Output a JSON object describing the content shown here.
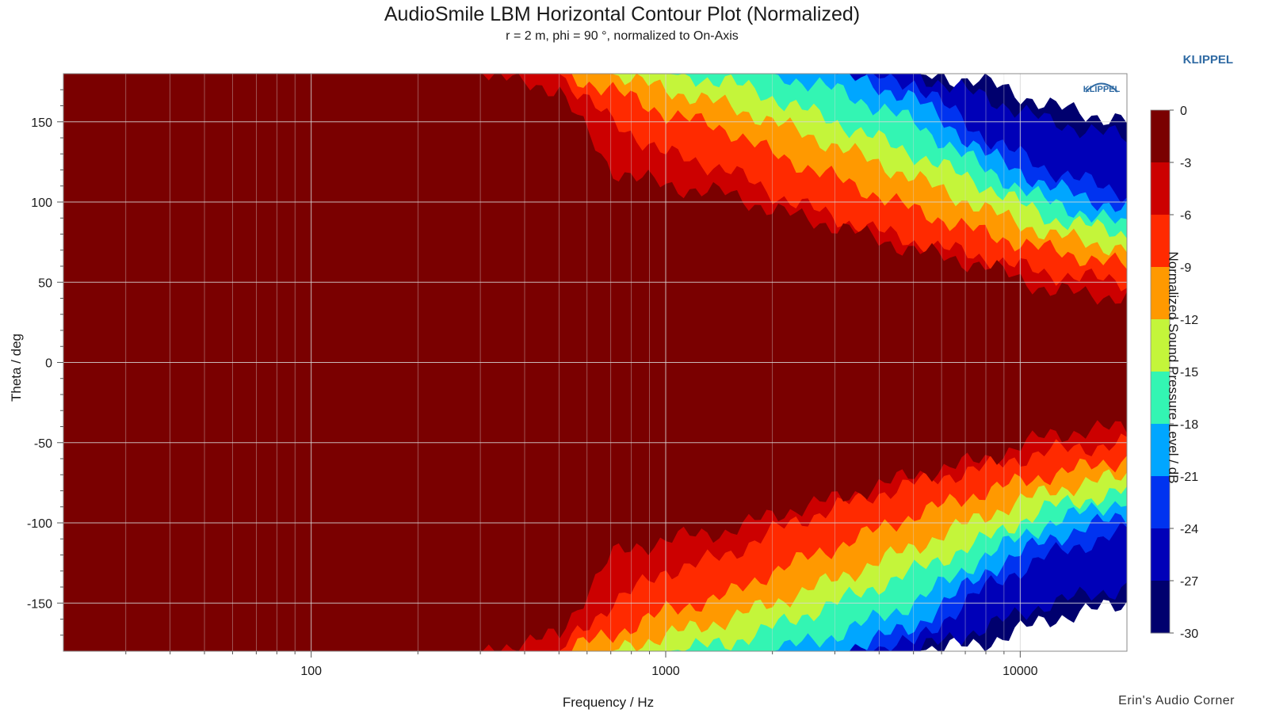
{
  "header": {
    "title": "AudioSmile LBM Horizontal Contour Plot (Normalized)",
    "subtitle": "r = 2 m, phi = 90 °, normalized to On-Axis",
    "brand": "KLIPPEL",
    "logo_text": "KLIPPEL",
    "credit": "Erin's Audio Corner"
  },
  "chart_data": {
    "type": "heatmap",
    "title": "AudioSmile LBM Horizontal Contour Plot (Normalized)",
    "subtitle": "r = 2 m, phi = 90 °, normalized to On-Axis",
    "xlabel": "Frequency / Hz",
    "ylabel": "Theta / deg",
    "colorbar_label": "Normalized Sound Pressure Level / dB",
    "x_scale": "log",
    "xlim": [
      20,
      20000
    ],
    "ylim": [
      -180,
      180
    ],
    "x_ticks": [
      100,
      1000,
      10000
    ],
    "x_tick_labels": [
      "100",
      "1000",
      "10000"
    ],
    "y_ticks": [
      150,
      100,
      50,
      0,
      -50,
      -100,
      -150
    ],
    "y_tick_labels": [
      "150",
      "100",
      "50",
      "0",
      "-50",
      "-100",
      "-150"
    ],
    "grid": true,
    "colorbar": {
      "levels": [
        0,
        -3,
        -6,
        -9,
        -12,
        -15,
        -18,
        -21,
        -24,
        -27,
        -30
      ],
      "level_labels": [
        "0",
        "-3",
        "-6",
        "-9",
        "-12",
        "-15",
        "-18",
        "-21",
        "-24",
        "-27",
        "-30"
      ],
      "colors": [
        "#7a0000",
        "#cc0000",
        "#ff2a00",
        "#ff9900",
        "#c4f53a",
        "#33f5b3",
        "#00a6ff",
        "#0033f0",
        "#0000b8",
        "#00006e"
      ],
      "below_min_color": "#ffffff"
    },
    "beamwidth_contours": {
      "frequency_hz": [
        20,
        300,
        500,
        700,
        1000,
        1500,
        2000,
        3000,
        5000,
        8000,
        12000,
        20000
      ],
      "angle_minus3db_deg": [
        180,
        180,
        170,
        120,
        110,
        105,
        95,
        85,
        70,
        60,
        45,
        40
      ],
      "angle_minus6db_deg": [
        180,
        180,
        180,
        150,
        130,
        120,
        105,
        90,
        75,
        65,
        55,
        50
      ],
      "angle_minus9db_deg": [
        180,
        180,
        180,
        170,
        155,
        145,
        130,
        115,
        95,
        80,
        70,
        60
      ],
      "angle_minus12db_deg": [
        180,
        180,
        180,
        180,
        170,
        160,
        150,
        135,
        115,
        95,
        80,
        70
      ],
      "angle_minus15db_deg": [
        180,
        180,
        180,
        180,
        180,
        175,
        165,
        150,
        130,
        110,
        90,
        80
      ],
      "angle_minus18db_deg": [
        180,
        180,
        180,
        180,
        180,
        180,
        180,
        170,
        150,
        120,
        100,
        85
      ],
      "angle_minus21db_deg": [
        180,
        180,
        180,
        180,
        180,
        180,
        180,
        180,
        165,
        130,
        110,
        95
      ],
      "angle_minus24db_deg": [
        180,
        180,
        180,
        180,
        180,
        180,
        180,
        180,
        175,
        140,
        120,
        105
      ],
      "angle_minus27db_deg": [
        180,
        180,
        180,
        180,
        180,
        180,
        180,
        180,
        180,
        165,
        150,
        140
      ],
      "angle_minus30db_deg": [
        180,
        180,
        180,
        180,
        180,
        180,
        180,
        180,
        180,
        175,
        160,
        150
      ]
    }
  }
}
